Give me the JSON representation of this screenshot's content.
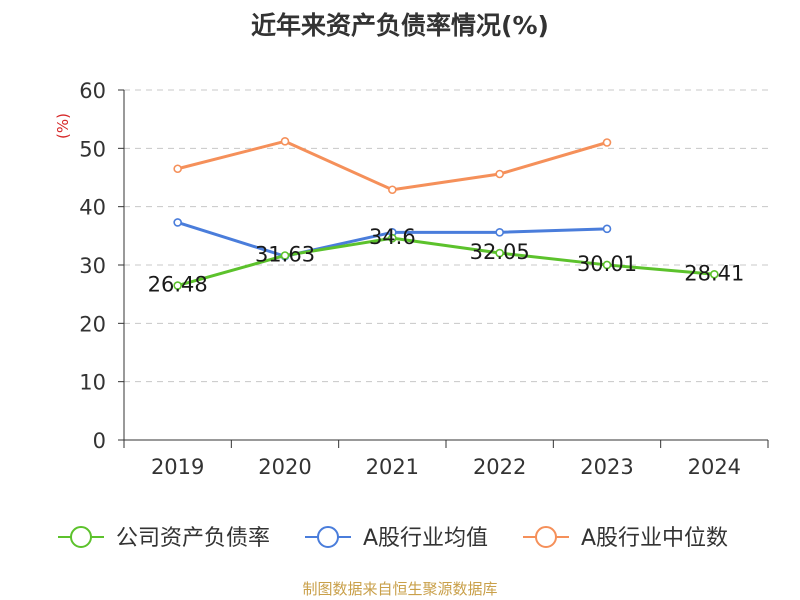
{
  "chart_data": {
    "type": "line",
    "title": "近年来资产负债率情况(%)",
    "ylabel": "(%)",
    "categories": [
      "2019",
      "2020",
      "2021",
      "2022",
      "2023",
      "2024"
    ],
    "ylim": [
      0,
      60
    ],
    "yticks": [
      "0",
      "10",
      "20",
      "30",
      "40",
      "50",
      "60"
    ],
    "grid": true,
    "legend_position": "bottom",
    "series": [
      {
        "name": "公司资产负债率",
        "color": "#5cc22c",
        "values": [
          26.48,
          31.63,
          34.6,
          32.05,
          30.01,
          28.41
        ],
        "labels": [
          "26.48",
          "31.63",
          "34.6",
          "32.05",
          "30.01",
          "28.41"
        ]
      },
      {
        "name": "A股行业均值",
        "color": "#4a7ddb",
        "values": [
          37.3,
          31.5,
          35.6,
          35.6,
          36.2,
          null
        ]
      },
      {
        "name": "A股行业中位数",
        "color": "#f5905a",
        "values": [
          46.5,
          51.2,
          42.9,
          45.6,
          51.0,
          null
        ]
      }
    ]
  },
  "source": "制图数据来自恒生聚源数据库"
}
